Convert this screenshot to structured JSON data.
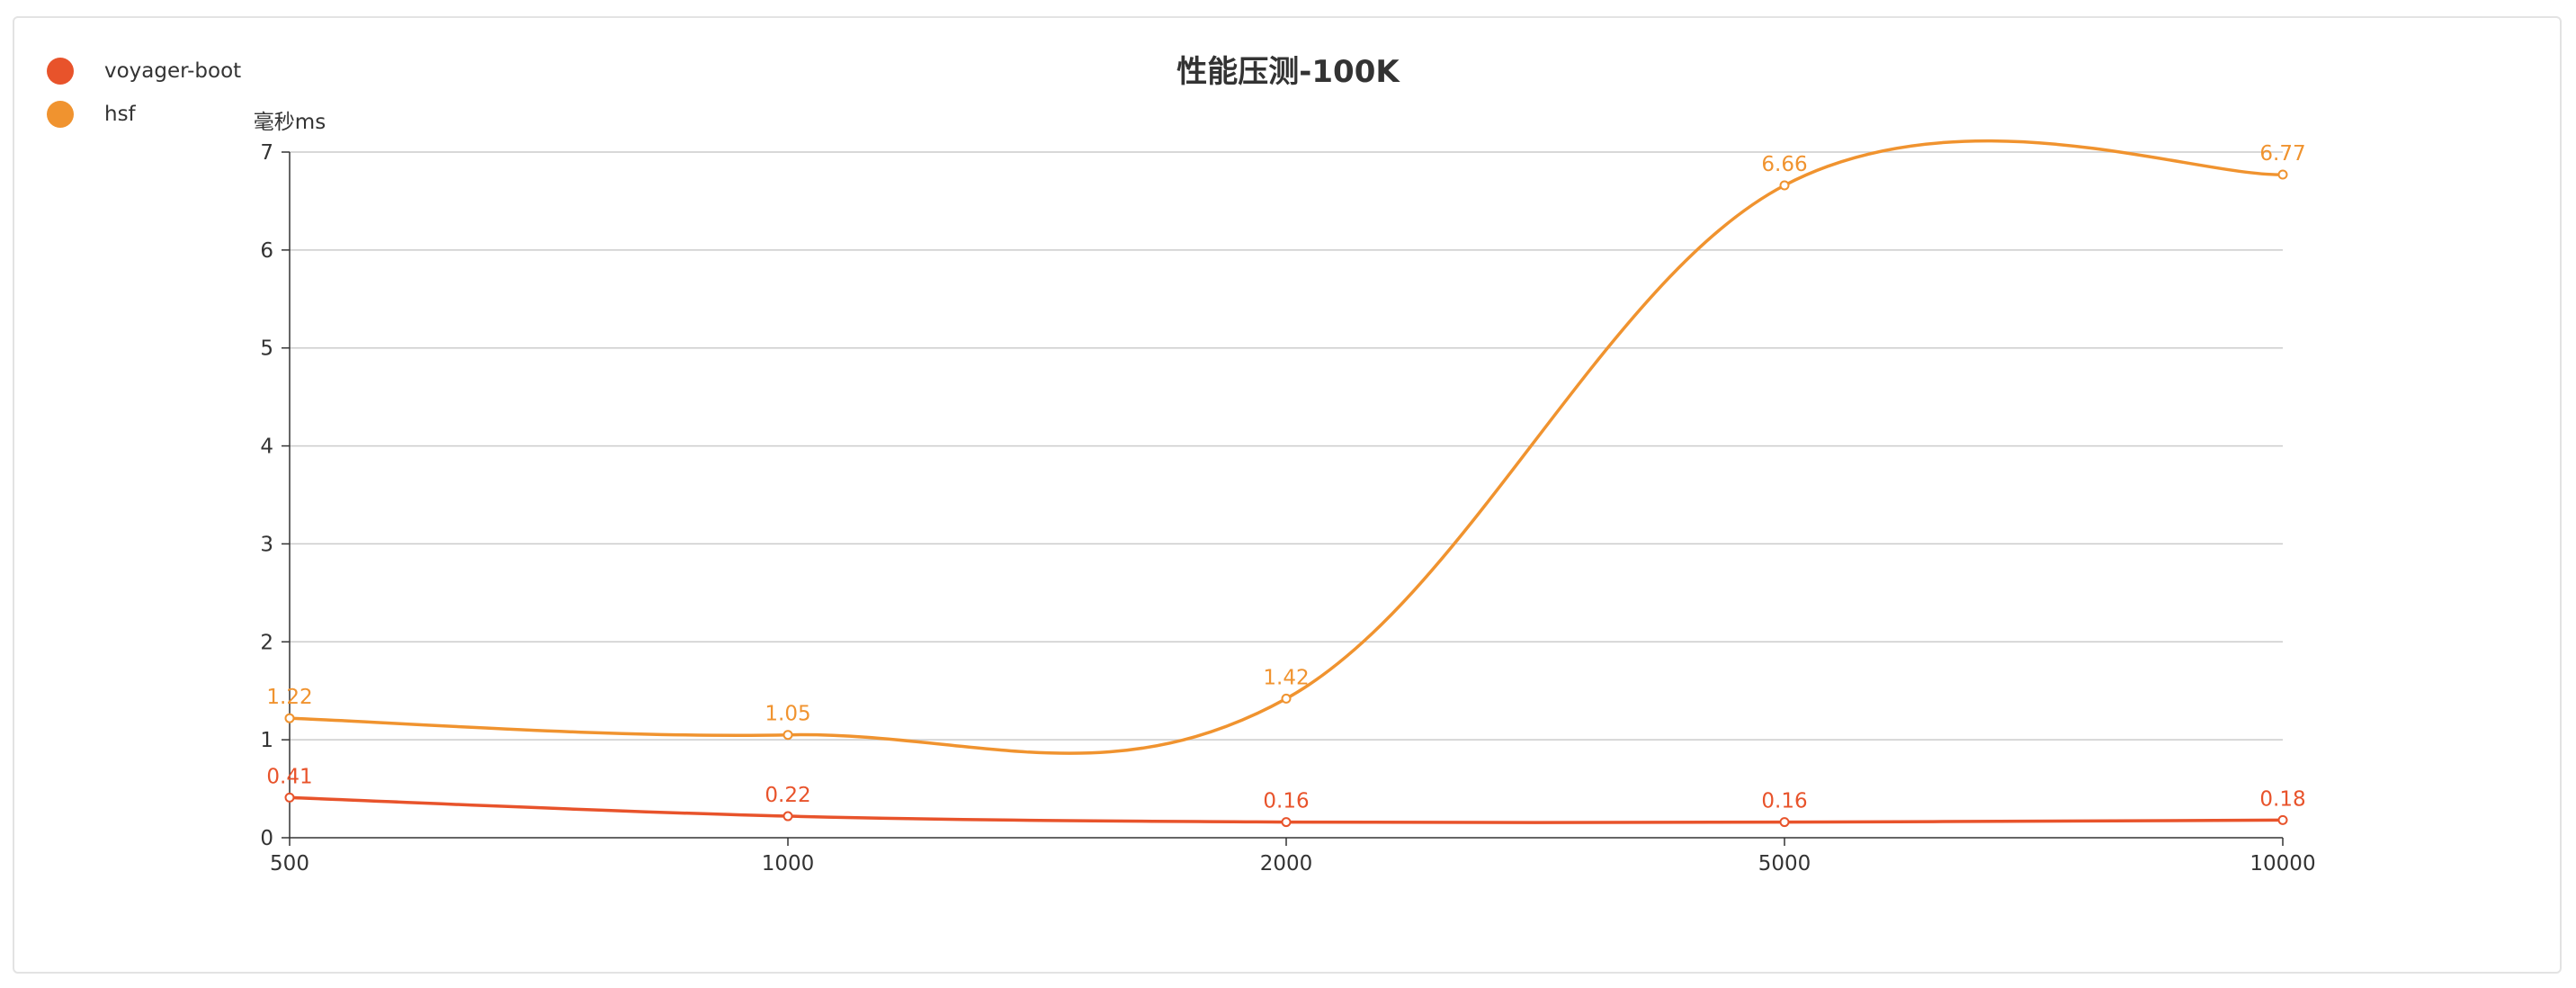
{
  "chart_data": {
    "type": "line",
    "title": "性能压测-100K",
    "ylabel": "毫秒ms",
    "xlabel": "",
    "categories": [
      "500",
      "1000",
      "2000",
      "5000",
      "10000"
    ],
    "ylim": [
      0,
      7
    ],
    "yticks": [
      0,
      1,
      2,
      3,
      4,
      5,
      6,
      7
    ],
    "grid": true,
    "legend_position": "top-left",
    "series": [
      {
        "name": "voyager-boot",
        "color": "#e8532b",
        "values": [
          0.41,
          0.22,
          0.16,
          0.16,
          0.18
        ]
      },
      {
        "name": "hsf",
        "color": "#f0932f",
        "values": [
          1.22,
          1.05,
          1.42,
          6.66,
          6.77
        ]
      }
    ]
  }
}
